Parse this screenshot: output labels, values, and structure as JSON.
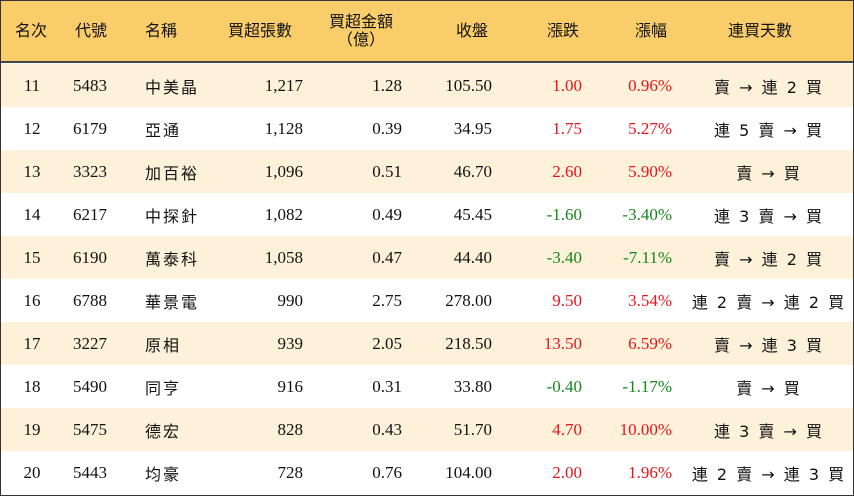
{
  "headers": {
    "rank": "名次",
    "code": "代號",
    "name": "名稱",
    "net_lots": "買超張數",
    "net_amount_line1": "買超金額",
    "net_amount_line2": "（億）",
    "close": "收盤",
    "change": "漲跌",
    "change_pct": "漲幅",
    "streak": "連買天數"
  },
  "colors": {
    "header_bg": "#f9cd6a",
    "row_alt_bg": "#fdf2d9",
    "up": "#e8141c",
    "down": "#16861c"
  },
  "rows": [
    {
      "rank": "11",
      "code": "5483",
      "name": "中美晶",
      "net_lots": "1,217",
      "net_amount": "1.28",
      "close": "105.50",
      "change": "1.00",
      "change_pct": "0.96%",
      "streak": "賣 → 連 2 買",
      "dir": "up"
    },
    {
      "rank": "12",
      "code": "6179",
      "name": "亞通",
      "net_lots": "1,128",
      "net_amount": "0.39",
      "close": "34.95",
      "change": "1.75",
      "change_pct": "5.27%",
      "streak": "連 5 賣 → 買",
      "dir": "up"
    },
    {
      "rank": "13",
      "code": "3323",
      "name": "加百裕",
      "net_lots": "1,096",
      "net_amount": "0.51",
      "close": "46.70",
      "change": "2.60",
      "change_pct": "5.90%",
      "streak": "賣 → 買",
      "dir": "up"
    },
    {
      "rank": "14",
      "code": "6217",
      "name": "中探針",
      "net_lots": "1,082",
      "net_amount": "0.49",
      "close": "45.45",
      "change": "-1.60",
      "change_pct": "-3.40%",
      "streak": "連 3 賣 → 買",
      "dir": "down"
    },
    {
      "rank": "15",
      "code": "6190",
      "name": "萬泰科",
      "net_lots": "1,058",
      "net_amount": "0.47",
      "close": "44.40",
      "change": "-3.40",
      "change_pct": "-7.11%",
      "streak": "賣 → 連 2 買",
      "dir": "down"
    },
    {
      "rank": "16",
      "code": "6788",
      "name": "華景電",
      "net_lots": "990",
      "net_amount": "2.75",
      "close": "278.00",
      "change": "9.50",
      "change_pct": "3.54%",
      "streak": "連 2 賣 → 連 2 買",
      "dir": "up"
    },
    {
      "rank": "17",
      "code": "3227",
      "name": "原相",
      "net_lots": "939",
      "net_amount": "2.05",
      "close": "218.50",
      "change": "13.50",
      "change_pct": "6.59%",
      "streak": "賣 → 連 3 買",
      "dir": "up"
    },
    {
      "rank": "18",
      "code": "5490",
      "name": "同亨",
      "net_lots": "916",
      "net_amount": "0.31",
      "close": "33.80",
      "change": "-0.40",
      "change_pct": "-1.17%",
      "streak": "賣 → 買",
      "dir": "down"
    },
    {
      "rank": "19",
      "code": "5475",
      "name": "德宏",
      "net_lots": "828",
      "net_amount": "0.43",
      "close": "51.70",
      "change": "4.70",
      "change_pct": "10.00%",
      "streak": "連 3 賣 → 買",
      "dir": "up"
    },
    {
      "rank": "20",
      "code": "5443",
      "name": "均豪",
      "net_lots": "728",
      "net_amount": "0.76",
      "close": "104.00",
      "change": "2.00",
      "change_pct": "1.96%",
      "streak": "連 2 賣 → 連 3 買",
      "dir": "up"
    }
  ]
}
